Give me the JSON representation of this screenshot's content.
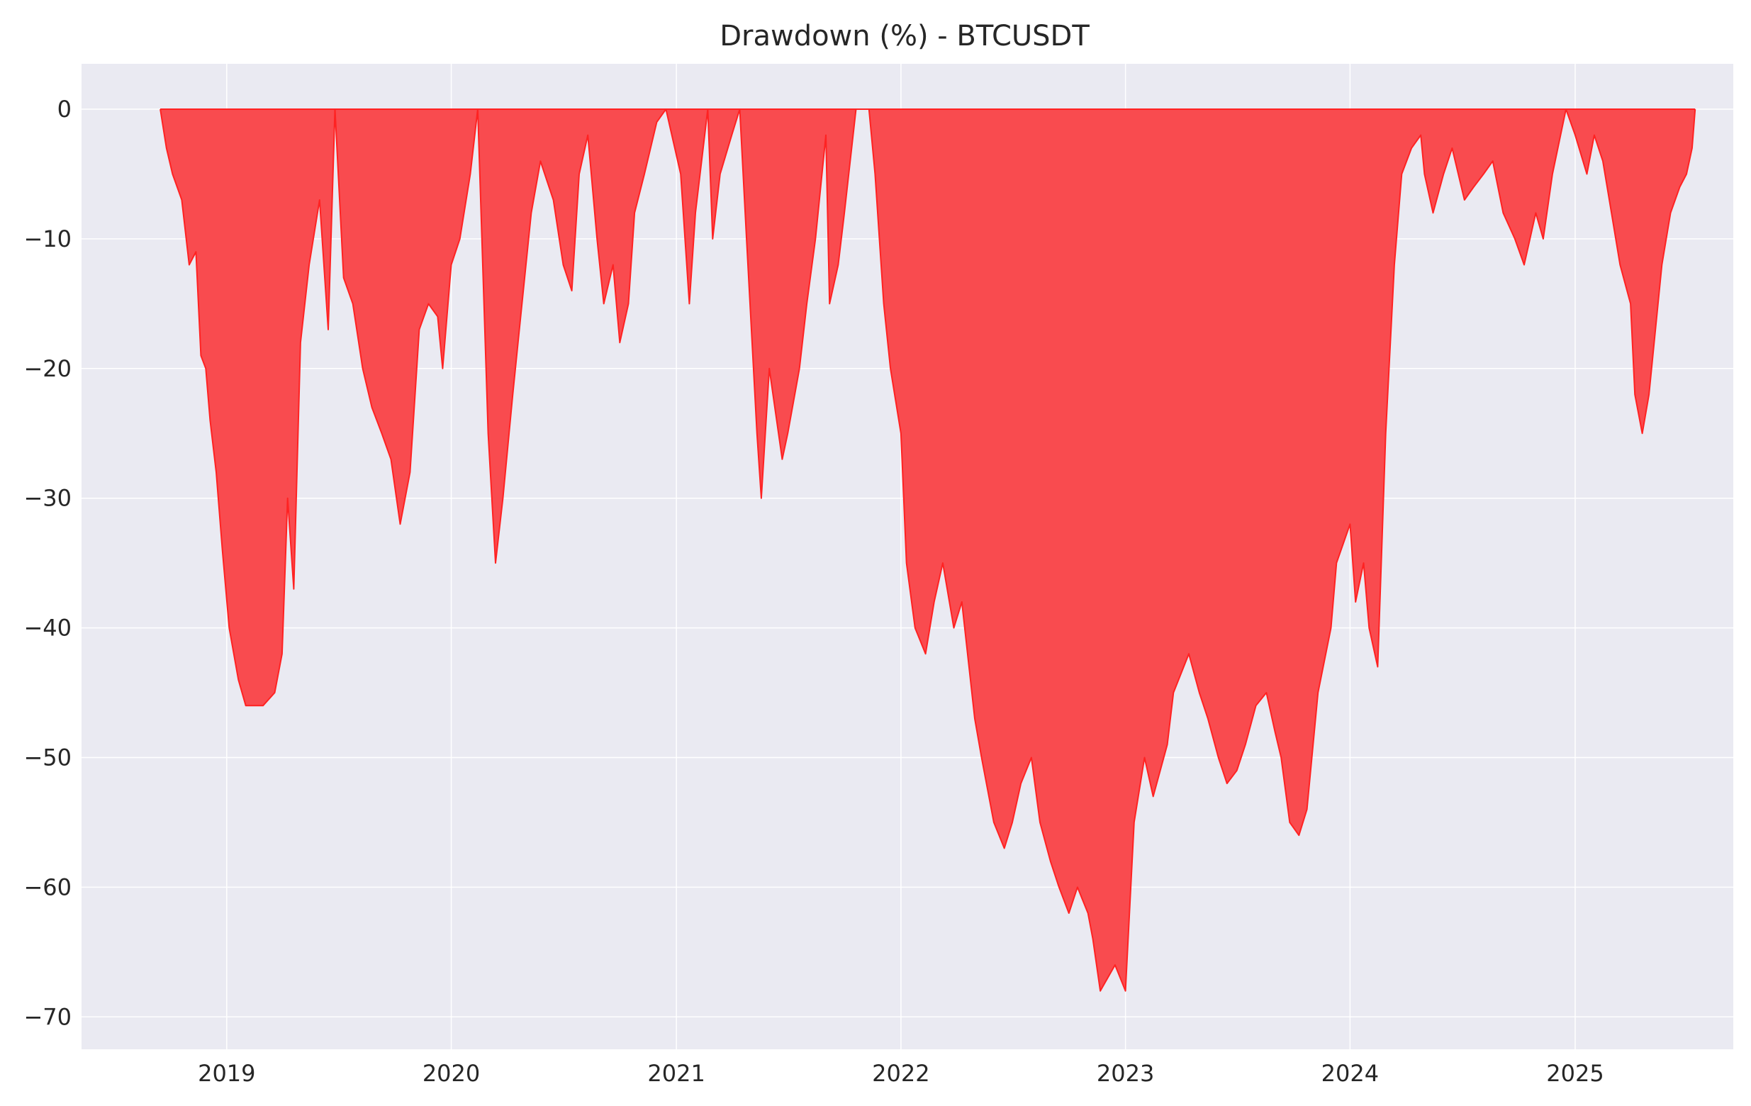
{
  "chart_data": {
    "type": "area",
    "title": "Drawdown (%) - BTCUSDT",
    "xlabel": "",
    "ylabel": "",
    "x_ticks": [
      "2019",
      "2020",
      "2021",
      "2022",
      "2023",
      "2024",
      "2025"
    ],
    "y_ticks": [
      0,
      -10,
      -20,
      -30,
      -40,
      -50,
      -60,
      -70
    ],
    "xlim": [
      "2018-05-10",
      "2025-09-15"
    ],
    "ylim": [
      -72.5,
      3.5
    ],
    "grid": true,
    "legend": "none",
    "colors": {
      "fill": "#f94549",
      "line": "#ff2222",
      "background": "#eaeaf2"
    },
    "series": [
      {
        "x": [
          "2018-09-15",
          "2018-09-25",
          "2018-10-05",
          "2018-10-20",
          "2018-11-01",
          "2018-11-12",
          "2018-11-20",
          "2018-11-28",
          "2018-12-05",
          "2018-12-15",
          "2018-12-25",
          "2019-01-05",
          "2019-01-20",
          "2019-02-01",
          "2019-02-15",
          "2019-03-01",
          "2019-03-20",
          "2019-04-01",
          "2019-04-10",
          "2019-04-20",
          "2019-05-01",
          "2019-05-15",
          "2019-06-01",
          "2019-06-15",
          "2019-06-26",
          "2019-07-10",
          "2019-07-25",
          "2019-08-10",
          "2019-08-25",
          "2019-09-10",
          "2019-09-25",
          "2019-10-10",
          "2019-10-26",
          "2019-11-10",
          "2019-11-25",
          "2019-12-10",
          "2019-12-18",
          "2020-01-01",
          "2020-01-15",
          "2020-02-01",
          "2020-02-13",
          "2020-03-01",
          "2020-03-13",
          "2020-03-25",
          "2020-04-10",
          "2020-04-25",
          "2020-05-10",
          "2020-05-25",
          "2020-06-01",
          "2020-06-15",
          "2020-07-01",
          "2020-07-15",
          "2020-07-27",
          "2020-08-10",
          "2020-08-25",
          "2020-09-05",
          "2020-09-20",
          "2020-10-01",
          "2020-10-15",
          "2020-10-25",
          "2020-11-10",
          "2020-11-30",
          "2020-12-15",
          "2021-01-08",
          "2021-01-22",
          "2021-02-01",
          "2021-02-21",
          "2021-03-01",
          "2021-03-13",
          "2021-04-01",
          "2021-04-14",
          "2021-04-25",
          "2021-05-12",
          "2021-05-19",
          "2021-06-01",
          "2021-06-22",
          "2021-07-01",
          "2021-07-20",
          "2021-08-01",
          "2021-08-15",
          "2021-09-01",
          "2021-09-07",
          "2021-09-21",
          "2021-10-01",
          "2021-10-20",
          "2021-11-10",
          "2021-11-20",
          "2021-12-04",
          "2021-12-15",
          "2022-01-01",
          "2022-01-10",
          "2022-01-24",
          "2022-02-10",
          "2022-02-24",
          "2022-03-10",
          "2022-03-28",
          "2022-04-10",
          "2022-05-01",
          "2022-05-12",
          "2022-06-01",
          "2022-06-18",
          "2022-07-01",
          "2022-07-15",
          "2022-08-01",
          "2022-08-15",
          "2022-09-01",
          "2022-09-15",
          "2022-10-01",
          "2022-10-15",
          "2022-11-01",
          "2022-11-09",
          "2022-11-21",
          "2022-12-15",
          "2023-01-01",
          "2023-01-15",
          "2023-02-01",
          "2023-02-15",
          "2023-03-10",
          "2023-03-20",
          "2023-04-14",
          "2023-05-01",
          "2023-05-15",
          "2023-06-01",
          "2023-06-15",
          "2023-07-01",
          "2023-07-15",
          "2023-08-01",
          "2023-08-18",
          "2023-09-01",
          "2023-09-11",
          "2023-09-25",
          "2023-10-10",
          "2023-10-23",
          "2023-11-10",
          "2023-12-01",
          "2023-12-10",
          "2024-01-01",
          "2024-01-10",
          "2024-01-23",
          "2024-02-01",
          "2024-02-15",
          "2024-02-28",
          "2024-03-13",
          "2024-03-25",
          "2024-04-10",
          "2024-04-25",
          "2024-05-01",
          "2024-05-15",
          "2024-06-01",
          "2024-06-15",
          "2024-07-05",
          "2024-07-20",
          "2024-08-05",
          "2024-08-20",
          "2024-09-06",
          "2024-09-25",
          "2024-10-10",
          "2024-10-29",
          "2024-11-10",
          "2024-11-25",
          "2024-12-17",
          "2025-01-01",
          "2025-01-20",
          "2025-02-01",
          "2025-02-15",
          "2025-03-01",
          "2025-03-15",
          "2025-04-01",
          "2025-04-08",
          "2025-04-20",
          "2025-05-01",
          "2025-05-22",
          "2025-06-05",
          "2025-06-20",
          "2025-07-01",
          "2025-07-10",
          "2025-07-15"
        ],
        "values": [
          0,
          -3,
          -5,
          -7,
          -12,
          -11,
          -19,
          -20,
          -24,
          -28,
          -34,
          -40,
          -44,
          -46,
          -46,
          -46,
          -45,
          -42,
          -30,
          -37,
          -18,
          -12,
          -7,
          -17,
          0,
          -13,
          -15,
          -20,
          -23,
          -25,
          -27,
          -32,
          -28,
          -17,
          -15,
          -16,
          -20,
          -12,
          -10,
          -5,
          0,
          -25,
          -35,
          -30,
          -22,
          -15,
          -8,
          -4,
          -5,
          -7,
          -12,
          -14,
          -5,
          -2,
          -10,
          -15,
          -12,
          -18,
          -15,
          -8,
          -5,
          -1,
          0,
          -5,
          -15,
          -8,
          0,
          -10,
          -5,
          -2,
          0,
          -10,
          -25,
          -30,
          -20,
          -27,
          -25,
          -20,
          -15,
          -10,
          -2,
          -15,
          -12,
          -8,
          0,
          0,
          -5,
          -15,
          -20,
          -25,
          -35,
          -40,
          -42,
          -38,
          -35,
          -40,
          -38,
          -47,
          -50,
          -55,
          -57,
          -55,
          -52,
          -50,
          -55,
          -58,
          -60,
          -62,
          -60,
          -62,
          -64,
          -68,
          -66,
          -68,
          -55,
          -50,
          -53,
          -49,
          -45,
          -42,
          -45,
          -47,
          -50,
          -52,
          -51,
          -49,
          -46,
          -45,
          -48,
          -50,
          -55,
          -56,
          -54,
          -45,
          -40,
          -35,
          -32,
          -38,
          -35,
          -40,
          -43,
          -25,
          -12,
          -5,
          -3,
          -2,
          -5,
          -8,
          -5,
          -3,
          -7,
          -6,
          -5,
          -4,
          -8,
          -10,
          -12,
          -8,
          -10,
          -5,
          0,
          -2,
          -5,
          -2,
          -4,
          -8,
          -12,
          -15,
          -22,
          -25,
          -22,
          -12,
          -8,
          -6,
          -5,
          -3,
          0
        ]
      }
    ]
  }
}
